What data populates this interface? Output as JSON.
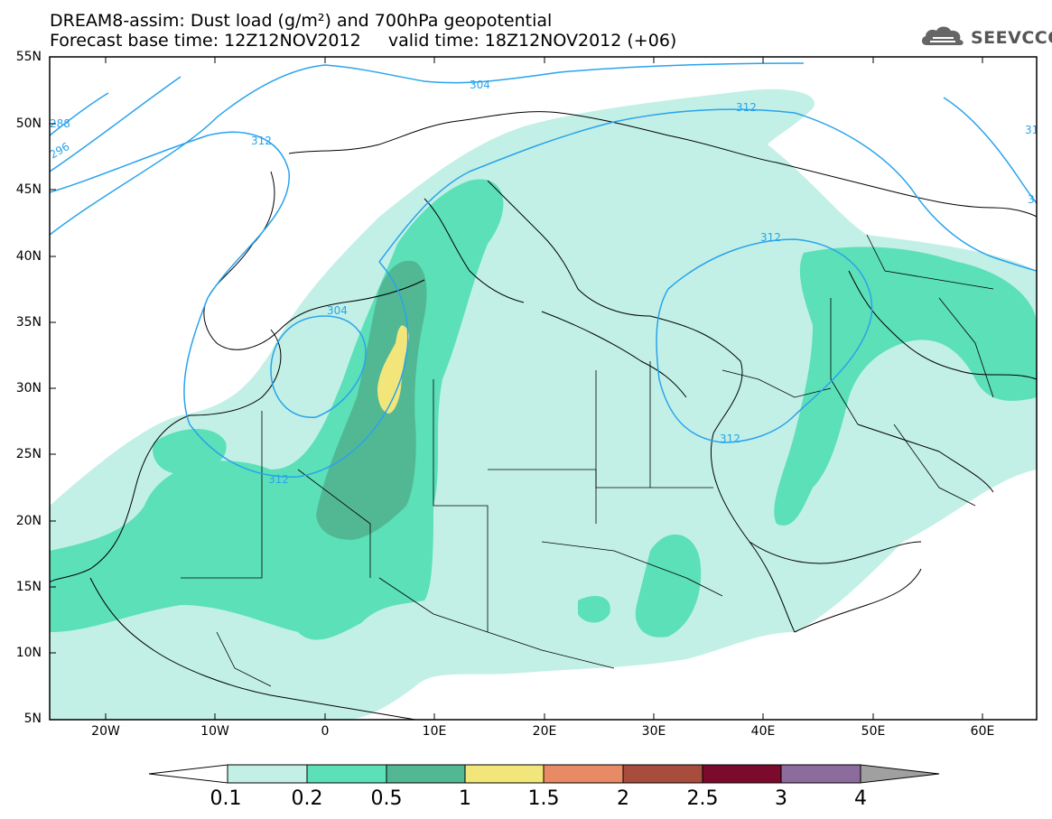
{
  "title": {
    "line1": "DREAM8-assim: Dust load (g/m²) and 700hPa geopotential",
    "line2": "Forecast base time: 12Z12NOV2012     valid time: 18Z12NOV2012 (+06)"
  },
  "logo": {
    "text": "SEEVCCC",
    "icon": "cloud-logo-icon"
  },
  "axes": {
    "lat_labels": [
      "55N",
      "50N",
      "45N",
      "40N",
      "35N",
      "30N",
      "25N",
      "20N",
      "15N",
      "10N",
      "5N"
    ],
    "lon_labels": [
      "20W",
      "10W",
      "0",
      "10E",
      "20E",
      "30E",
      "40E",
      "50E",
      "60E"
    ]
  },
  "contours": [
    "288",
    "296",
    "304",
    "312",
    "312",
    "312",
    "304",
    "312",
    "312",
    "312",
    "312"
  ],
  "colorbar": {
    "labels": [
      "0.1",
      "0.2",
      "0.5",
      "1",
      "1.5",
      "2",
      "2.5",
      "3",
      "4"
    ],
    "colors": [
      "#ffffff",
      "#c2f0e6",
      "#5ce0b8",
      "#52b894",
      "#f2e67a",
      "#e88a64",
      "#a84c3c",
      "#7c0a2c",
      "#8c6c9c",
      "#a0a0a0"
    ]
  }
}
